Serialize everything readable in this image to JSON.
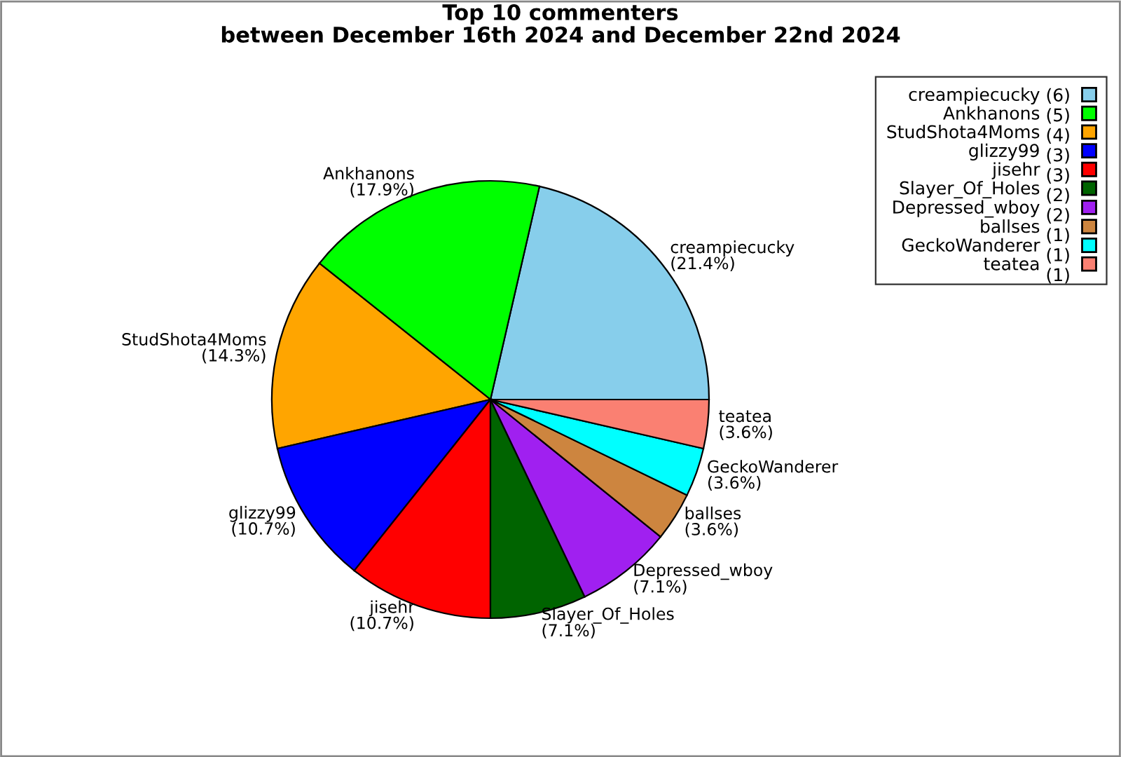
{
  "chart_data": {
    "type": "pie",
    "title": "Top 10 commenters\nbetween December 16th 2024 and December 22nd 2024",
    "categories": [
      "creampiecucky",
      "Ankhanons",
      "StudShota4Moms",
      "glizzy99",
      "jisehr",
      "Slayer_Of_Holes",
      "Depressed_wboy",
      "ballses",
      "GeckoWanderer",
      "teatea"
    ],
    "values": [
      21.4,
      17.9,
      14.3,
      10.7,
      10.7,
      7.1,
      7.1,
      3.6,
      3.6,
      3.6
    ],
    "annotations": [
      "(6)",
      "(5)",
      "(4)",
      "(3)",
      "(3)",
      "(2)",
      "(2)",
      "(1)",
      "(1)",
      "(1)"
    ],
    "value_labels": [
      "(21.4%)",
      "(17.9%)",
      "(14.3%)",
      "(10.7%)",
      "(10.7%)",
      "(7.1%)",
      "(7.1%)",
      "(3.6%)",
      "(3.6%)",
      "(3.6%)"
    ],
    "colors": [
      "#87ceeb",
      "#00ff00",
      "#ffa500",
      "#0000ff",
      "#ff0000",
      "#006400",
      "#a020f0",
      "#cd853f",
      "#00ffff",
      "#fa8072"
    ],
    "legend": "top right"
  }
}
